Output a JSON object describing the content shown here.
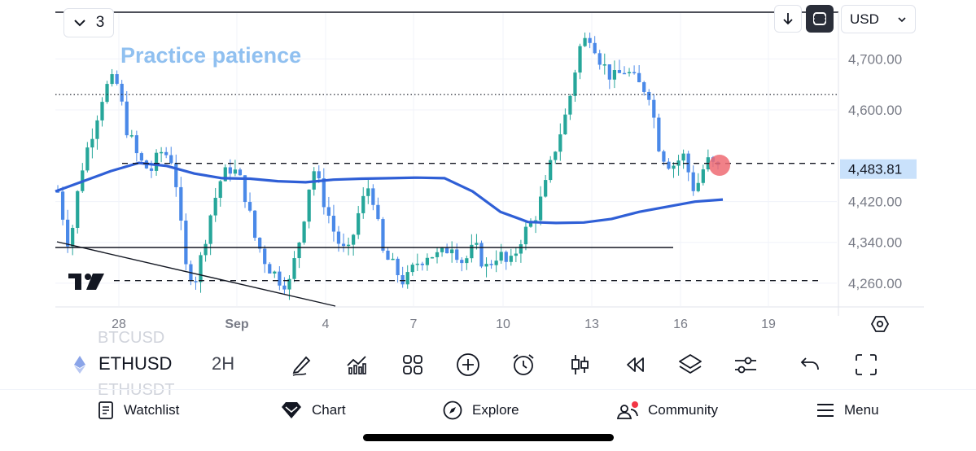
{
  "indicator_count": "3",
  "watermark_text": "Practice patience",
  "currency": "USD",
  "price_axis": {
    "labels": [
      "4,700.00",
      "4,600.00",
      "4,420.00",
      "4,340.00",
      "4,260.00"
    ],
    "label_values": [
      4700,
      4600,
      4420,
      4340,
      4260
    ],
    "current_price": "4,483.81",
    "current_value": 4483.81
  },
  "time_axis": {
    "labels": [
      "28",
      "Sep",
      "4",
      "7",
      "10",
      "13",
      "16",
      "19"
    ]
  },
  "drawings": {
    "resistance_dotted_value": 4630,
    "dashed_level_mid_value": 4495,
    "dashed_level_low_value": 4265,
    "support_solid_value": 4330
  },
  "symbol": {
    "name": "ETHUSD",
    "interval": "2H",
    "ghost_above": "BTCUSD",
    "ghost_below": "ETHUSDT"
  },
  "toolbar": [
    "draw-tool-icon",
    "indicators-icon",
    "layout-icon",
    "add-icon",
    "alert-icon",
    "candle-type-icon",
    "replay-icon",
    "layers-icon",
    "chart-settings-icon",
    "undo-icon",
    "fullscreen-icon"
  ],
  "nav": {
    "watchlist": "Watchlist",
    "chart": "Chart",
    "explore": "Explore",
    "community": "Community",
    "menu": "Menu"
  },
  "colors": {
    "bull": "#26a69a",
    "bear": "#4a89e8",
    "ma": "#2f5fd6",
    "price_badge": "#c9e1fb",
    "watermark": "#90c0f0"
  },
  "chart_data": {
    "type": "candlestick",
    "symbol": "ETHUSD",
    "interval": "2H",
    "ylim": [
      4215,
      4790
    ],
    "close_path": [
      4440,
      4330,
      4480,
      4560,
      4640,
      4660,
      4560,
      4500,
      4480,
      4520,
      4500,
      4290,
      4270,
      4380,
      4460,
      4490,
      4450,
      4350,
      4300,
      4270,
      4260,
      4360,
      4490,
      4420,
      4350,
      4310,
      4400,
      4460,
      4320,
      4290,
      4260,
      4300,
      4320,
      4310,
      4340,
      4300,
      4330,
      4290,
      4320,
      4290,
      4350,
      4380,
      4440,
      4530,
      4600,
      4720,
      4750,
      4690,
      4660,
      4680,
      4650,
      4640,
      4520,
      4490,
      4510,
      4440,
      4500,
      4483
    ],
    "moving_average": [
      4440,
      4460,
      4480,
      4496,
      4490,
      4475,
      4466,
      4465,
      4460,
      4458,
      4463,
      4465,
      4466,
      4467,
      4466,
      4440,
      4400,
      4380,
      4378,
      4379,
      4386,
      4400,
      4410,
      4420,
      4424
    ],
    "last_price": 4483.81
  }
}
